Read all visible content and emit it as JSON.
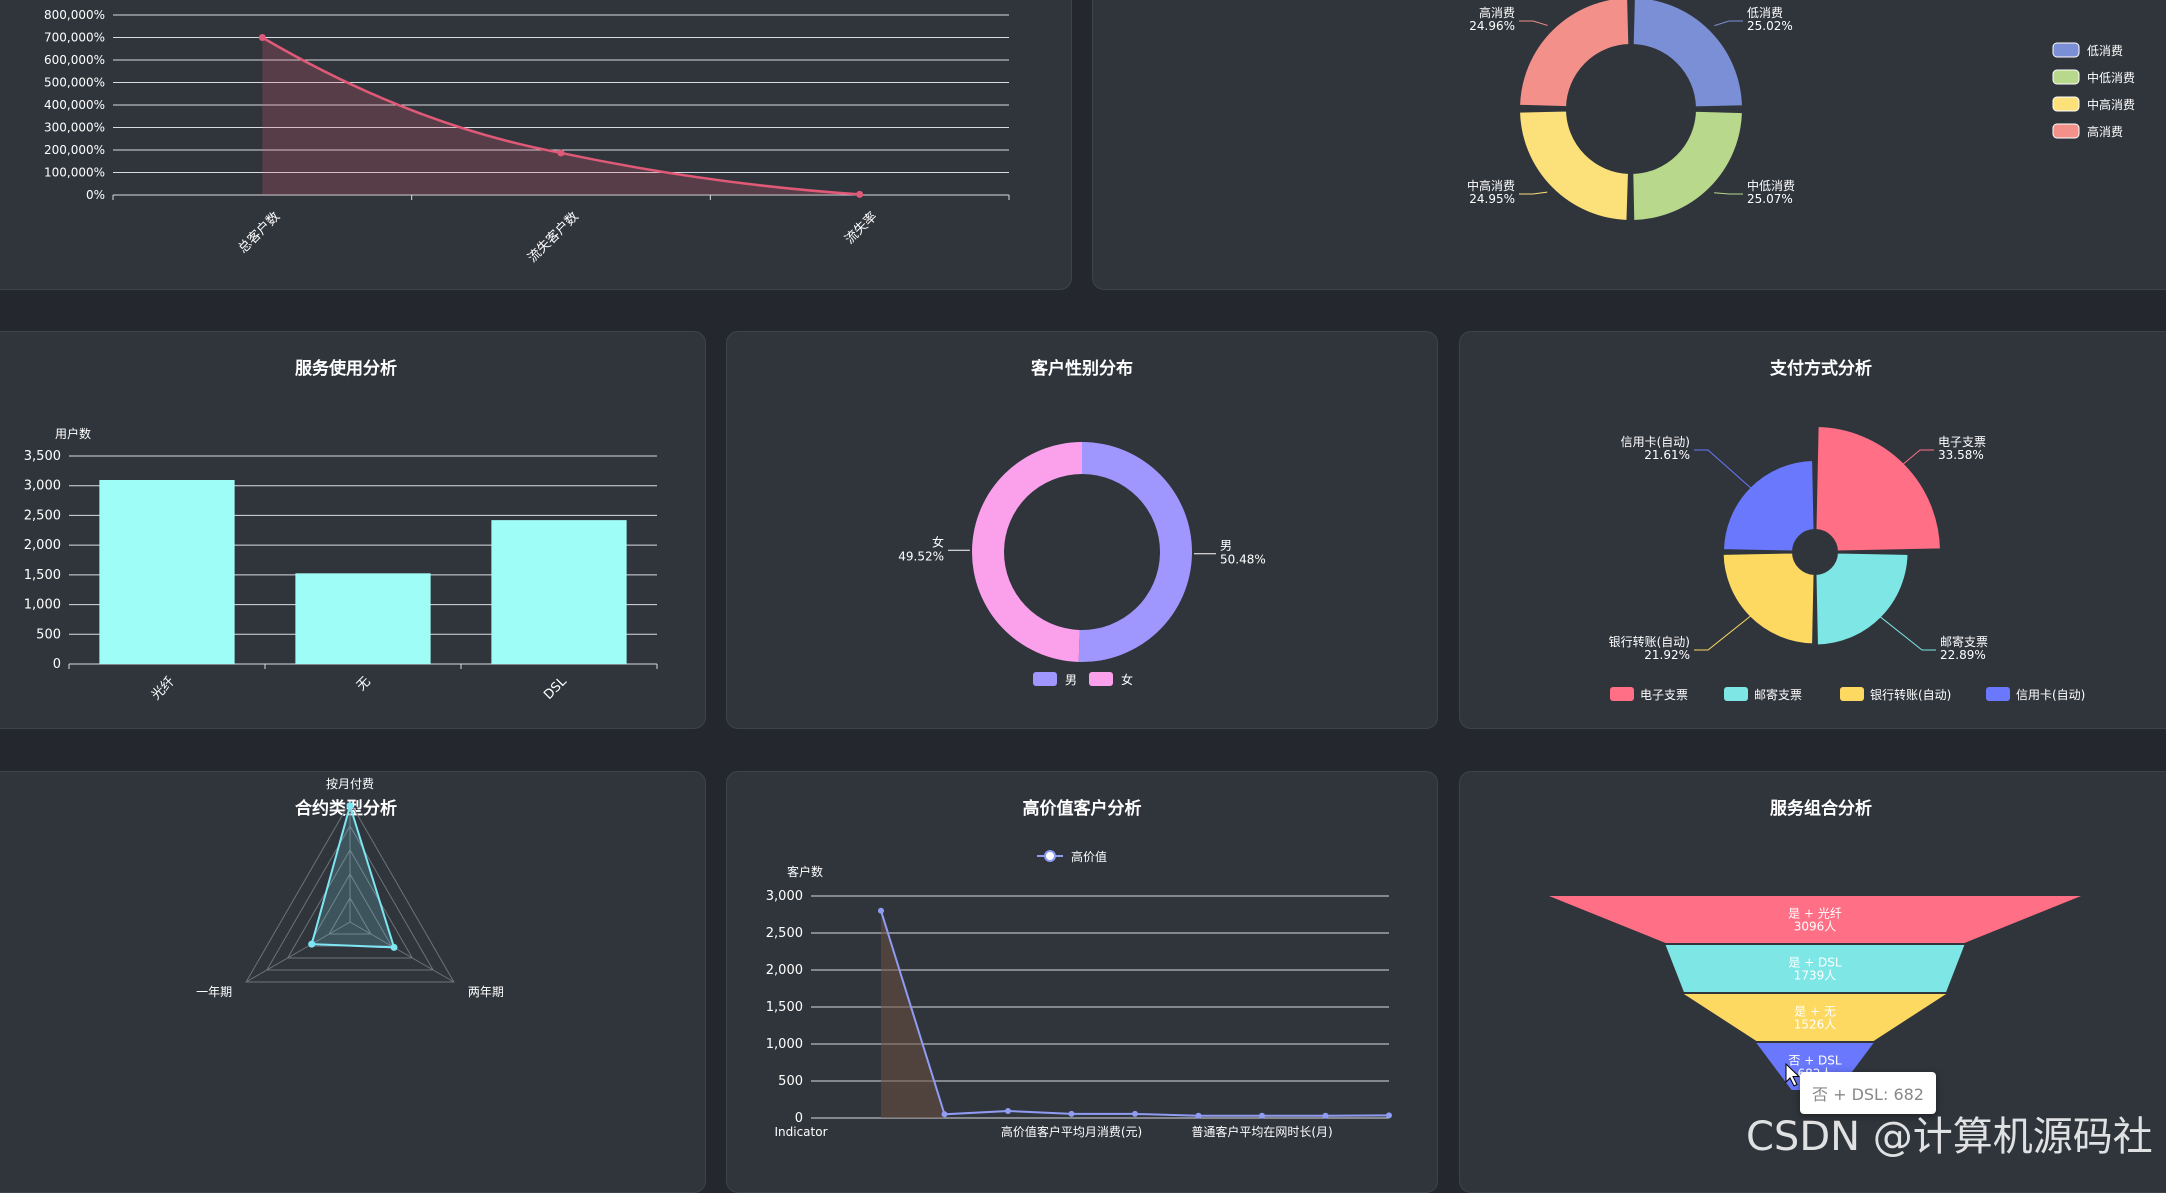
{
  "charts": {
    "churn": {
      "chart_data": {
        "type": "line",
        "categories": [
          "总客户数",
          "流失客户数",
          "流失率"
        ],
        "values": [
          700000,
          186900,
          2654
        ],
        "ylim": [
          0,
          800000
        ],
        "yticks": [
          "0%",
          "100,000%",
          "200,000%",
          "300,000%",
          "400,000%",
          "500,000%",
          "600,000%",
          "700,000%",
          "800,000%"
        ],
        "color": "#e05a78"
      }
    },
    "consumption": {
      "chart_data": {
        "type": "pie",
        "labels": [
          "低消费",
          "中低消费",
          "中高消费",
          "高消费"
        ],
        "values": [
          25.02,
          25.07,
          24.95,
          24.96
        ],
        "pct_labels": [
          "25.02%",
          "25.07%",
          "24.95%",
          "24.96%"
        ],
        "colors": [
          "#7b8fd6",
          "#b8d98c",
          "#fce07a",
          "#f29089"
        ],
        "legend": "right"
      }
    },
    "service": {
      "title": "服务使用分析",
      "chart_data": {
        "type": "bar",
        "ylabel": "用户数",
        "categories": [
          "光纤",
          "无",
          "DSL"
        ],
        "values": [
          3096,
          1526,
          2421
        ],
        "ylim": [
          0,
          3500
        ],
        "yticks": [
          "0",
          "500",
          "1,000",
          "1,500",
          "2,000",
          "2,500",
          "3,000",
          "3,500"
        ],
        "color": "#9efdf7"
      }
    },
    "gender": {
      "title": "客户性别分布",
      "chart_data": {
        "type": "pie",
        "labels": [
          "男",
          "女"
        ],
        "values": [
          50.48,
          49.52
        ],
        "pct_labels": [
          "50.48%",
          "49.52%"
        ],
        "colors": [
          "#9f97fe",
          "#fba1ec"
        ],
        "legend": "bottom"
      }
    },
    "payment": {
      "title": "支付方式分析",
      "chart_data": {
        "type": "pie",
        "labels": [
          "电子支票",
          "邮寄支票",
          "银行转账(自动)",
          "信用卡(自动)"
        ],
        "values": [
          33.58,
          22.89,
          21.92,
          21.61
        ],
        "pct_labels": [
          "33.58%",
          "22.89%",
          "21.92%",
          "21.61%"
        ],
        "colors": [
          "#ff6f86",
          "#7ee6e4",
          "#fed961",
          "#6978fc"
        ],
        "legend": "bottom"
      }
    },
    "contract": {
      "title": "合约类型分析",
      "chart_data": {
        "type": "radar",
        "indicators": [
          "按月付费",
          "两年期",
          "一年期"
        ],
        "values": [
          3875,
          1695,
          1473
        ],
        "max": 4000,
        "color": "#7ee6f3"
      }
    },
    "highvalue": {
      "title": "高价值客户分析",
      "chart_data": {
        "type": "line",
        "ylabel": "客户数",
        "series_name": "高价值",
        "categories": [
          "Indicator",
          "",
          "",
          "高价值客户平均月消费(元)",
          "",
          "",
          "普通客户平均在网时长(月)",
          "",
          ""
        ],
        "values": [
          2800,
          50,
          95,
          55,
          55,
          30,
          30,
          30,
          35
        ],
        "ylim": [
          0,
          3000
        ],
        "yticks": [
          "0",
          "500",
          "1,000",
          "1,500",
          "2,000",
          "2,500",
          "3,000"
        ],
        "color": "#8f9cf2"
      }
    },
    "combo": {
      "title": "服务组合分析",
      "chart_data": {
        "type": "funnel",
        "labels": [
          "是 + 光纤",
          "是 + DSL",
          "是 + 无",
          "否 + DSL"
        ],
        "values": [
          3096,
          1739,
          1526,
          682
        ],
        "value_labels": [
          "3096人",
          "1739人",
          "1526人",
          "682人"
        ],
        "colors": [
          "#ff6f86",
          "#7ee6e4",
          "#fed961",
          "#6978fc"
        ]
      }
    }
  },
  "tooltip": "否 + DSL: 682",
  "watermark": "CSDN @计算机源码社"
}
